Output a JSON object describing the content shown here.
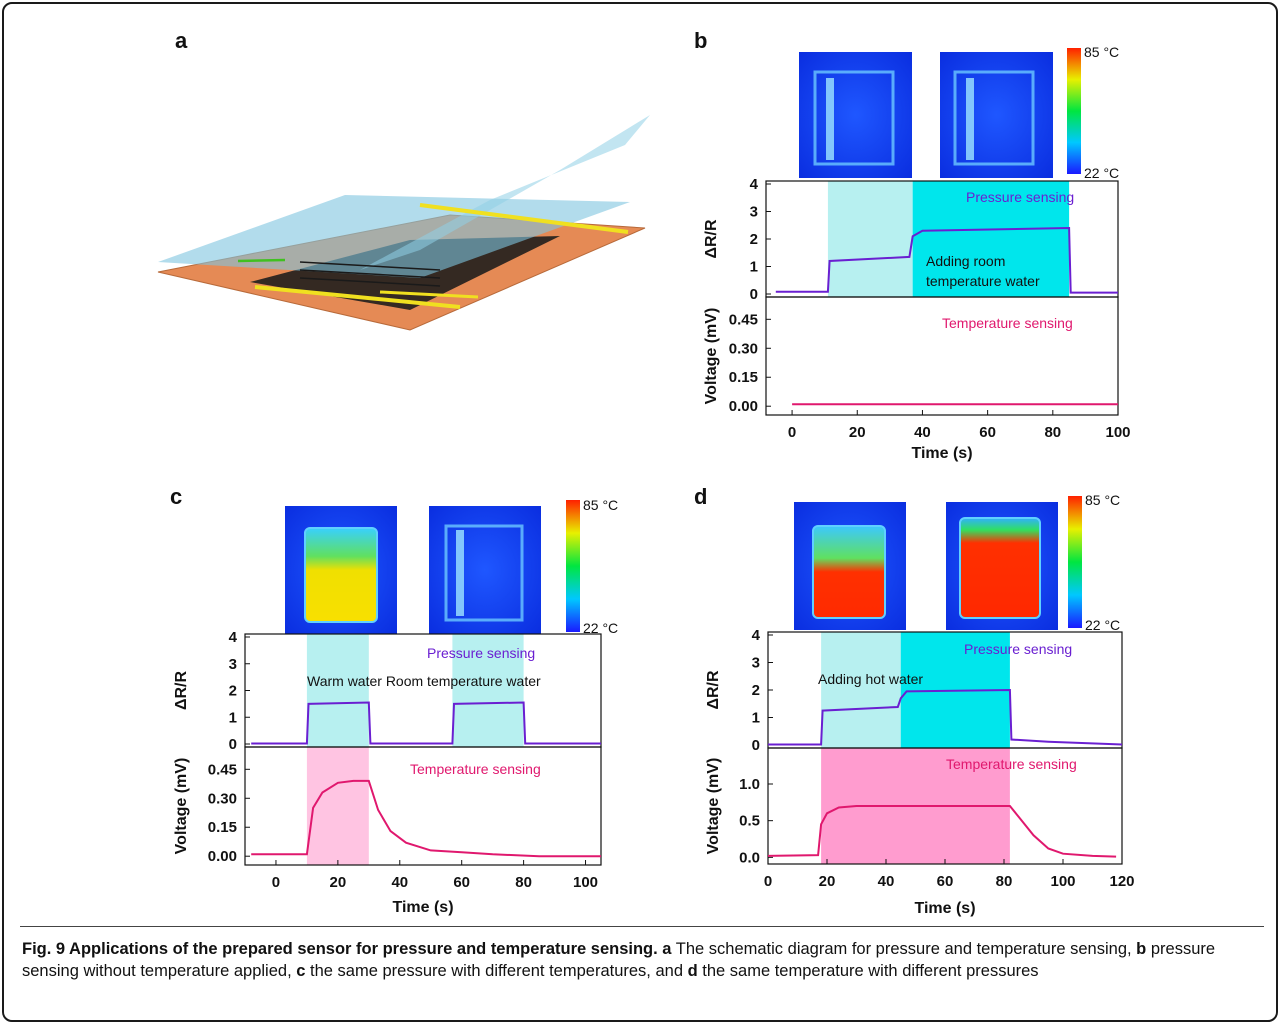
{
  "panels": {
    "a": {
      "label": "a"
    },
    "b": {
      "label": "b",
      "colorbar": {
        "max_label": "85 °C",
        "min_label": "22 °C"
      },
      "top": {
        "ylabel": "ΔR/R",
        "legend": "Pressure sensing",
        "annotation_line1": "Adding room",
        "annotation_line2": "temperature water",
        "yticks": [
          "0",
          "1",
          "2",
          "3",
          "4"
        ]
      },
      "bottom": {
        "ylabel": "Voltage (mV)",
        "legend": "Temperature sensing",
        "yticks": [
          "0.00",
          "0.15",
          "0.30",
          "0.45"
        ]
      },
      "xlabel": "Time (s)",
      "xticks": [
        "0",
        "20",
        "40",
        "60",
        "80",
        "100"
      ]
    },
    "c": {
      "label": "c",
      "colorbar": {
        "max_label": "85 °C",
        "min_label": "22 °C"
      },
      "top": {
        "ylabel": "ΔR/R",
        "legend": "Pressure sensing",
        "annotation": "Warm water Room temperature water",
        "yticks": [
          "0",
          "1",
          "2",
          "3",
          "4"
        ]
      },
      "bottom": {
        "ylabel": "Voltage (mV)",
        "legend": "Temperature sensing",
        "yticks": [
          "0.00",
          "0.15",
          "0.30",
          "0.45"
        ]
      },
      "xlabel": "Time (s)",
      "xticks": [
        "0",
        "20",
        "40",
        "60",
        "80",
        "100"
      ]
    },
    "d": {
      "label": "d",
      "colorbar": {
        "max_label": "85 °C",
        "min_label": "22 °C"
      },
      "top": {
        "ylabel": "ΔR/R",
        "legend": "Pressure sensing",
        "annotation": "Adding hot water",
        "yticks": [
          "0",
          "1",
          "2",
          "3",
          "4"
        ]
      },
      "bottom": {
        "ylabel": "Voltage (mV)",
        "legend": "Temperature sensing",
        "yticks": [
          "0.0",
          "0.5",
          "1.0"
        ]
      },
      "xlabel": "Time (s)",
      "xticks": [
        "0",
        "20",
        "40",
        "60",
        "80",
        "100",
        "120"
      ]
    }
  },
  "caption": {
    "title": "Fig. 9 Applications of the prepared sensor for pressure and temperature sensing.",
    "a_letter": "a",
    "a_text": " The schematic diagram for pressure and temperature sensing, ",
    "b_letter": "b",
    "b_text": " pressure sensing without temperature applied, ",
    "c_letter": "c",
    "c_text": " the same pressure with different temperatures, and ",
    "d_letter": "d",
    "d_text": " the same temperature with different pressures"
  },
  "colors": {
    "pressure": "#6a1fd1",
    "temperature": "#e0186e",
    "cyan_light": "#b7f0f0",
    "cyan_strong": "#00e6ec",
    "pink_light": "#ffc4e2",
    "pink_strong": "#ff9ccf"
  },
  "chart_data": [
    {
      "panel": "b",
      "type": "line",
      "x_range": [
        -8,
        100
      ],
      "series": [
        {
          "axis": "ΔR/R",
          "ylim": [
            0,
            4
          ],
          "x": [
            -5,
            11,
            11.5,
            36,
            37,
            40,
            85,
            85.5,
            100
          ],
          "y": [
            0.08,
            0.08,
            1.2,
            1.35,
            2.1,
            2.3,
            2.4,
            0.05,
            0.05
          ]
        },
        {
          "axis": "Voltage (mV)",
          "ylim": [
            -0.03,
            0.55
          ],
          "x": [
            0,
            100
          ],
          "y": [
            0.01,
            0.01
          ]
        }
      ],
      "shaded": [
        {
          "from": 11,
          "to": 37,
          "color": "cyan_light"
        },
        {
          "from": 37,
          "to": 85,
          "color": "cyan_strong"
        }
      ]
    },
    {
      "panel": "c",
      "type": "line",
      "x_range": [
        -10,
        105
      ],
      "series": [
        {
          "axis": "ΔR/R",
          "ylim": [
            0,
            4
          ],
          "x": [
            -8,
            10,
            10.5,
            30,
            30.5,
            57,
            57.5,
            80,
            80.5,
            105
          ],
          "y": [
            0.02,
            0.02,
            1.5,
            1.55,
            0.02,
            0.02,
            1.5,
            1.55,
            0.02,
            0.02
          ]
        },
        {
          "axis": "Voltage (mV)",
          "ylim": [
            -0.03,
            0.55
          ],
          "x": [
            -8,
            10,
            12,
            15,
            20,
            25,
            30,
            33,
            37,
            42,
            50,
            60,
            70,
            85,
            105
          ],
          "y": [
            0.01,
            0.01,
            0.25,
            0.33,
            0.38,
            0.39,
            0.39,
            0.24,
            0.13,
            0.07,
            0.03,
            0.02,
            0.01,
            0.0,
            0.0
          ]
        }
      ],
      "shaded": [
        {
          "from": 10,
          "to": 30,
          "color": "cyan_light"
        },
        {
          "from": 57,
          "to": 80,
          "color": "cyan_light"
        },
        {
          "from": 10,
          "to": 30,
          "color": "pink_light"
        }
      ]
    },
    {
      "panel": "d",
      "type": "line",
      "x_range": [
        0,
        120
      ],
      "series": [
        {
          "axis": "ΔR/R",
          "ylim": [
            0,
            4
          ],
          "x": [
            0,
            18,
            18.5,
            44,
            45,
            47,
            82,
            82.5,
            95,
            120
          ],
          "y": [
            0.02,
            0.02,
            1.25,
            1.38,
            1.7,
            1.95,
            2.0,
            0.2,
            0.12,
            0.02
          ]
        },
        {
          "axis": "Voltage (mV)",
          "ylim": [
            -0.05,
            1.45
          ],
          "x": [
            0,
            17,
            18,
            20,
            24,
            30,
            50,
            82,
            85,
            90,
            95,
            100,
            110,
            118
          ],
          "y": [
            0.02,
            0.03,
            0.45,
            0.6,
            0.68,
            0.7,
            0.7,
            0.7,
            0.55,
            0.3,
            0.12,
            0.05,
            0.02,
            0.01
          ]
        }
      ],
      "shaded": [
        {
          "from": 18,
          "to": 45,
          "color": "cyan_light"
        },
        {
          "from": 45,
          "to": 82,
          "color": "cyan_strong"
        },
        {
          "from": 18,
          "to": 82,
          "color": "pink_strong"
        }
      ]
    }
  ]
}
